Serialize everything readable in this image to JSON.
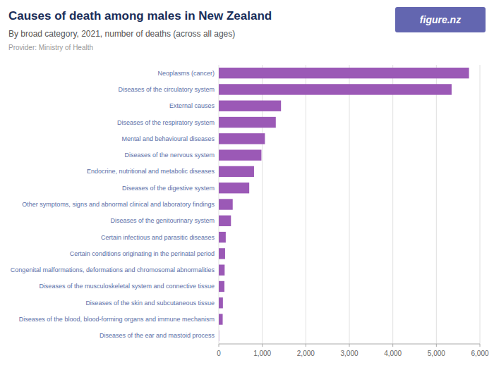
{
  "chart_data": {
    "type": "bar",
    "orientation": "horizontal",
    "title": "Causes of death among males in New Zealand",
    "subtitle": "By broad category, 2021, number of deaths (across all ages)",
    "annotations": [
      "Provider: Ministry of Health",
      "figure.nz"
    ],
    "categories": [
      "Neoplasms (cancer)",
      "Diseases of the circulatory system",
      "External causes",
      "Diseases of the respiratory system",
      "Mental and behavioural diseases",
      "Diseases of the nervous system",
      "Endocrine, nutritional and metabolic diseases",
      "Diseases of the digestive system",
      "Other symptoms, signs and abnormal clinical and laboratory findings",
      "Diseases of the genitourinary system",
      "Certain infectious and parasitic diseases",
      "Certain conditions originating in the perinatal period",
      "Congenital malformations, deformations and chromosomal abnormalities",
      "Diseases of the musculoskeletal system and connective tissue",
      "Diseases of the skin and subcutaneous tissue",
      "Diseases of the blood, blood-forming organs and immune mechanism",
      "Diseases of the ear and mastoid process"
    ],
    "values": [
      5750,
      5350,
      1430,
      1310,
      1060,
      980,
      810,
      700,
      320,
      280,
      160,
      145,
      135,
      130,
      95,
      90,
      5
    ],
    "color": "#9b59b6",
    "xlim": [
      0,
      6000
    ],
    "xticks": [
      0,
      {
        "value": 1000,
        "label": "1,000"
      },
      {
        "value": 2000,
        "label": "2,000"
      },
      {
        "value": 3000,
        "label": "3,000"
      },
      {
        "value": 4000,
        "label": "4,000"
      },
      {
        "value": 5000,
        "label": "5,000"
      },
      {
        "value": 6000,
        "label": "6,000"
      }
    ],
    "grid": true
  }
}
